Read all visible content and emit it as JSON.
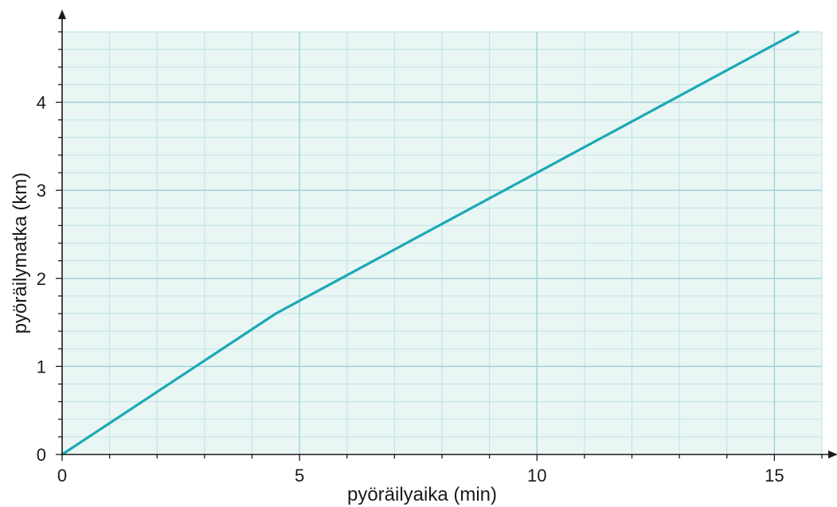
{
  "chart_data": {
    "type": "line",
    "xlabel": "pyöräilyaika (min)",
    "ylabel": "pyöräilymatka (km)",
    "xlim": [
      0,
      16
    ],
    "ylim": [
      0,
      4.8
    ],
    "x_ticks": [
      0,
      5,
      10,
      15
    ],
    "y_ticks": [
      0,
      1,
      2,
      3,
      4
    ],
    "x_minor_step": 1,
    "y_minor_step": 0.2,
    "grid": true,
    "colors": {
      "line": "#1aa9b4",
      "plot_background": "#e9f6f4",
      "grid_minor": "#bfe3e3",
      "grid_major": "#9fd3d6",
      "axis": "#1a1a1a"
    },
    "series": [
      {
        "x": [
          0,
          4.5,
          15.5
        ],
        "y": [
          0,
          1.6,
          4.8
        ]
      }
    ]
  }
}
